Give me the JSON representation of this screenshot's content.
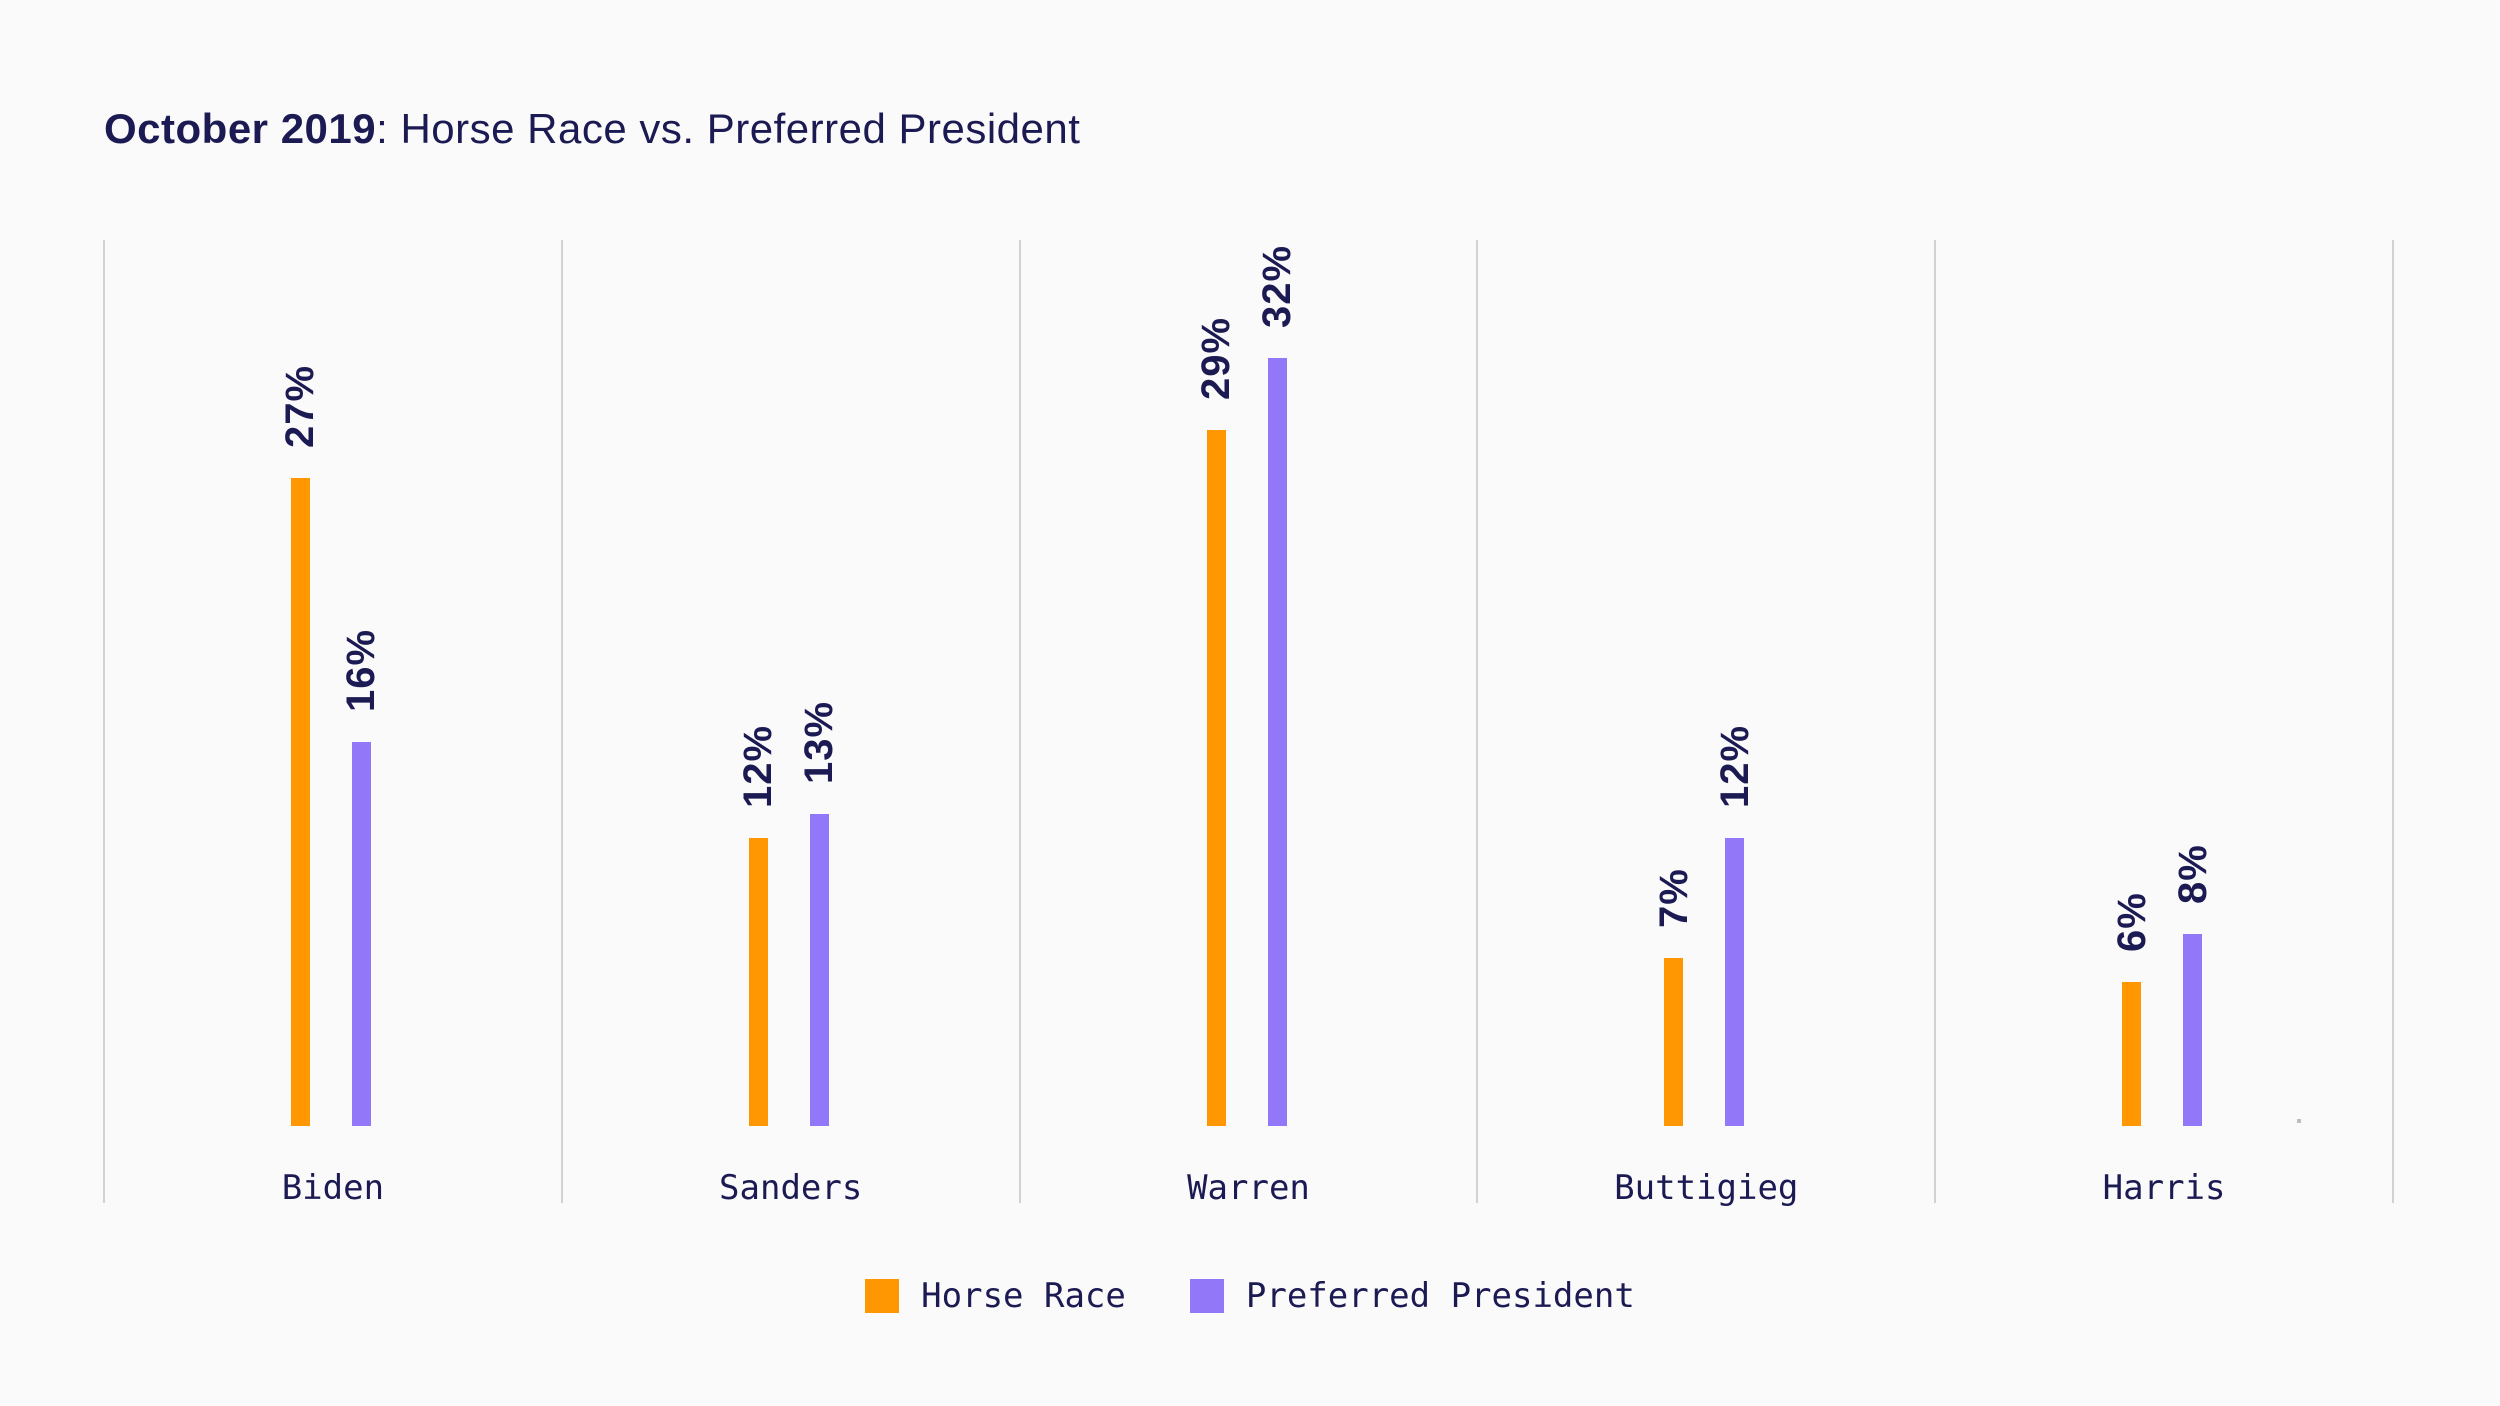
{
  "page": {
    "background": "#FAFAFA"
  },
  "title": {
    "bold": "October 2019",
    "rest": ": Horse Race vs. Preferred President"
  },
  "chart_data": {
    "type": "bar",
    "title": "October 2019: Horse Race vs. Preferred President",
    "categories": [
      "Biden",
      "Sanders",
      "Warren",
      "Buttigieg",
      "Harris"
    ],
    "series": [
      {
        "name": "Horse Race",
        "color": "#FF9702",
        "values": [
          27,
          12,
          29,
          7,
          6
        ]
      },
      {
        "name": "Preferred President",
        "color": "#9377F9",
        "values": [
          16,
          13,
          32,
          12,
          8
        ]
      }
    ],
    "value_suffix": "%",
    "data_labels": {
      "Horse Race": [
        "27%",
        "12%",
        "29%",
        "7%",
        "6%"
      ],
      "Preferred President": [
        "16%",
        "13%",
        "32%",
        "12%",
        "8%"
      ]
    },
    "xlabel": "",
    "ylabel": "",
    "y_axis_visible": false,
    "grid": "vertical category separators only",
    "legend_position": "bottom-center",
    "bar_label_rotation_deg": -90
  },
  "colors": {
    "background": "#FAFAFA",
    "text_navy": "#1C1A53",
    "gridline": "#D2D2D2",
    "horse_race_orange": "#FF9702",
    "preferred_president_purple": "#9377F9"
  }
}
